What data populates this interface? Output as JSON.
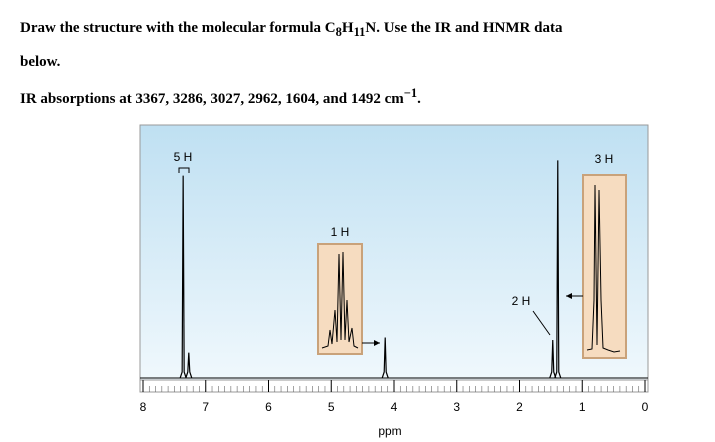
{
  "question": {
    "line1": {
      "before": "Draw the structure with the molecular formula C",
      "sub1": "8",
      "mid": "H",
      "sub2": "11",
      "after": "N. Use the IR and HNMR data"
    },
    "line2": "below.",
    "line3": {
      "text": "IR absorptions at 3367, 3286, 3027, 2962, 1604, and 1492 cm",
      "sup": "−1",
      "end": "."
    }
  },
  "chart_data": {
    "type": "nmr",
    "xlabel": "ppm",
    "xlim": [
      8,
      0
    ],
    "xticks": [
      8,
      7,
      6,
      5,
      4,
      3,
      2,
      1,
      0
    ],
    "ylim": [
      0,
      100
    ],
    "x": [
      7.36,
      7.27,
      4.14,
      1.47,
      1.39
    ],
    "values": [
      80,
      10,
      16,
      15,
      86
    ],
    "color": "#000000",
    "annotations": [
      "5 H",
      "1 H",
      "2 H",
      "3 H"
    ]
  }
}
